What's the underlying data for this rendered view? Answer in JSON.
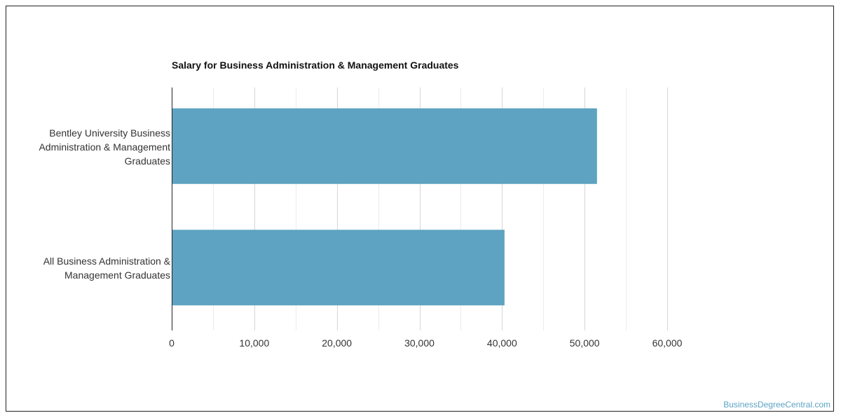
{
  "colors": {
    "bar": "#5ea3c1",
    "grid": "#dcdcdc",
    "axis": "#222222",
    "watermark": "#5ba3c5"
  },
  "chart_data": {
    "type": "bar",
    "orientation": "horizontal",
    "title": "Salary for Business Administration & Management Graduates",
    "categories": [
      "Bentley University Business Administration & Management Graduates",
      "All Business Administration & Management Graduates"
    ],
    "values": [
      51500,
      40300
    ],
    "xlim": [
      0,
      60000
    ],
    "tick_values": [
      0,
      10000,
      20000,
      30000,
      40000,
      50000,
      60000
    ],
    "tick_labels": [
      "0",
      "10,000",
      "20,000",
      "30,000",
      "40,000",
      "50,000",
      "60,000"
    ],
    "grid": true,
    "legend": "none"
  },
  "watermark": "BusinessDegreeCentral.com"
}
